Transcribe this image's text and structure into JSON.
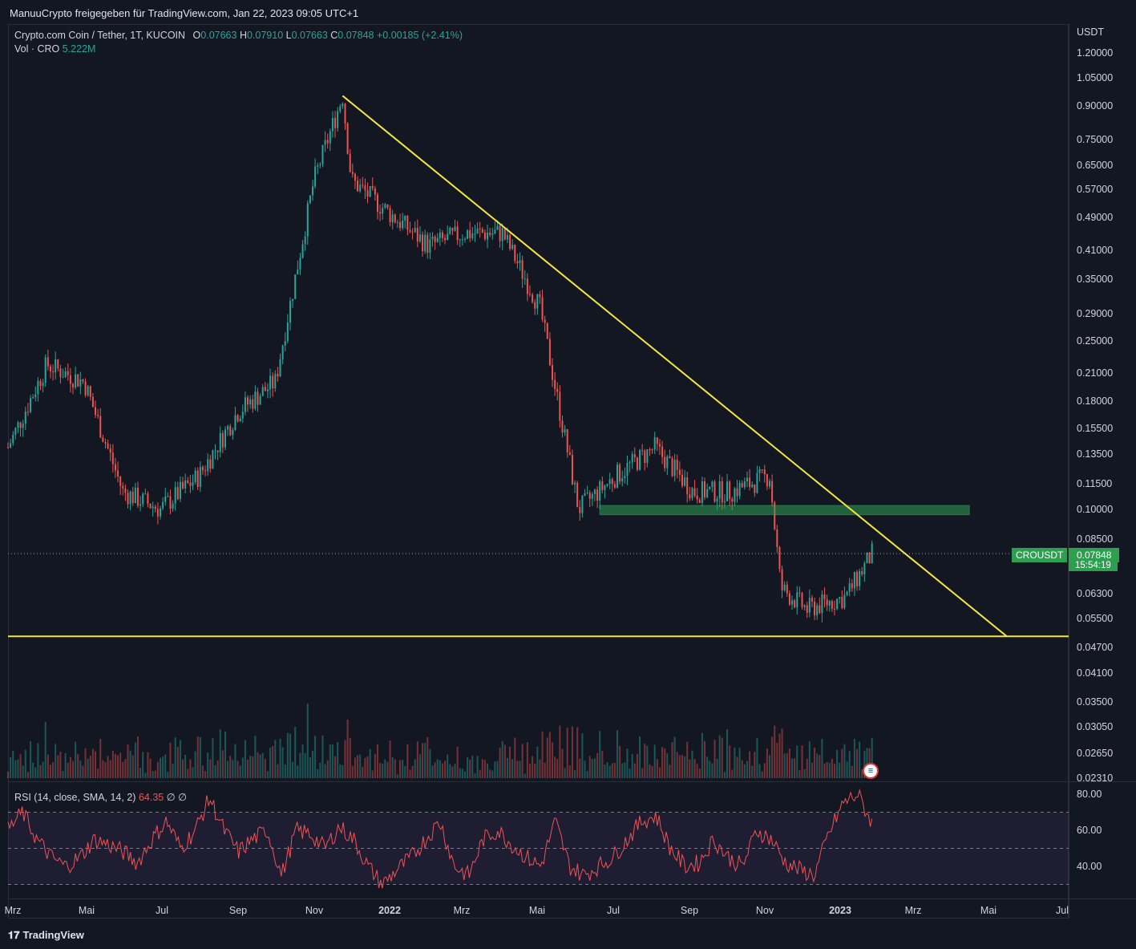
{
  "header": {
    "share_text": "ManuuCrypto freigegeben für TradingView.com, Jan 22, 2023 09:05 UTC+1"
  },
  "legend": {
    "symbol": "Crypto.com Coin / Tether, 1T, KUCOIN",
    "o_label": "O",
    "o_value": "0.07663",
    "h_label": "H",
    "h_value": "0.07910",
    "l_label": "L",
    "l_value": "0.07663",
    "c_label": "C",
    "c_value": "0.07848",
    "change": "+0.00185 (+2.41%)",
    "vol_label": "Vol · CRO",
    "vol_value": "5.222M"
  },
  "rsi_legend": {
    "label": "RSI (14, close, SMA, 14, 2)",
    "value": "64.35",
    "extra1": "∅",
    "extra2": "∅"
  },
  "price_axis": {
    "currency": "USDT",
    "labels": [
      "1.20000",
      "1.05000",
      "0.90000",
      "0.75000",
      "0.65000",
      "0.57000",
      "0.49000",
      "0.41000",
      "0.35000",
      "0.29000",
      "0.25000",
      "0.21000",
      "0.18000",
      "0.15500",
      "0.13500",
      "0.11500",
      "0.10000",
      "0.08500",
      "0.06300",
      "0.05500",
      "0.04700",
      "0.04100",
      "0.03500",
      "0.03050",
      "0.02650",
      "0.02310"
    ]
  },
  "rsi_axis": {
    "labels": [
      "80.00",
      "60.00",
      "40.00"
    ]
  },
  "time_axis": {
    "labels": [
      {
        "text": "Mrz",
        "bold": false
      },
      {
        "text": "Mai",
        "bold": false
      },
      {
        "text": "Jul",
        "bold": false
      },
      {
        "text": "Sep",
        "bold": false
      },
      {
        "text": "Nov",
        "bold": false
      },
      {
        "text": "2022",
        "bold": true
      },
      {
        "text": "Mrz",
        "bold": false
      },
      {
        "text": "Mai",
        "bold": false
      },
      {
        "text": "Jul",
        "bold": false
      },
      {
        "text": "Sep",
        "bold": false
      },
      {
        "text": "Nov",
        "bold": false
      },
      {
        "text": "2023",
        "bold": true
      },
      {
        "text": "Mrz",
        "bold": false
      },
      {
        "text": "Mai",
        "bold": false
      },
      {
        "text": "Jul",
        "bold": false
      }
    ]
  },
  "current_price": {
    "symbol_badge": "CROUSDT",
    "price": "0.07848",
    "countdown": "15:54:19"
  },
  "footer": {
    "brand": "TradingView"
  },
  "colors": {
    "up": "#26a69a",
    "down": "#ef5350",
    "trendline": "#f5e642",
    "zone": "#2e9e50",
    "rsi": "#f05356",
    "rsi_band": "#7e57c2"
  },
  "chart_data": {
    "type": "candlestick",
    "symbol": "Crypto.com Coin / Tether, 1T, KUCOIN",
    "scale": "log",
    "ylim": [
      0.0231,
      1.2
    ],
    "x": [
      "2021-03",
      "2021-04",
      "2021-05",
      "2021-06",
      "2021-07",
      "2021-08",
      "2021-09",
      "2021-10",
      "2021-11",
      "2021-11-24",
      "2021-12",
      "2022-01",
      "2022-02",
      "2022-03",
      "2022-04",
      "2022-05",
      "2022-06",
      "2022-07",
      "2022-08",
      "2022-09",
      "2022-10",
      "2022-11",
      "2022-11-10",
      "2022-12",
      "2023-01",
      "2023-01-22"
    ],
    "close": [
      0.14,
      0.22,
      0.2,
      0.11,
      0.1,
      0.12,
      0.17,
      0.2,
      0.6,
      0.95,
      0.6,
      0.5,
      0.42,
      0.45,
      0.45,
      0.3,
      0.1,
      0.12,
      0.14,
      0.11,
      0.11,
      0.12,
      0.065,
      0.058,
      0.062,
      0.07848
    ],
    "annotations": {
      "descending_trendline": {
        "from": [
          "2021-11-24",
          0.95
        ],
        "to": [
          "2023-05-10",
          0.05
        ]
      },
      "horizontal_support": 0.05,
      "zone": {
        "from": "2022-06-18",
        "to": "2023-04-10",
        "low": 0.097,
        "high": 0.102
      }
    },
    "rsi": {
      "levels": [
        70,
        50,
        30
      ],
      "ylim": [
        25,
        85
      ],
      "values": [
        60,
        70,
        55,
        45,
        40,
        45,
        55,
        52,
        48,
        42,
        55,
        65,
        50,
        60,
        78,
        60,
        48,
        55,
        60,
        35,
        60,
        58,
        50,
        62,
        55,
        40,
        30,
        38,
        45,
        55,
        65,
        40,
        35,
        55,
        60,
        52,
        45,
        40,
        65,
        40,
        35,
        40,
        45,
        55,
        65,
        68,
        50,
        40,
        42,
        55,
        45,
        40,
        60,
        55,
        42,
        38,
        35,
        58,
        75,
        80,
        64
      ]
    }
  }
}
